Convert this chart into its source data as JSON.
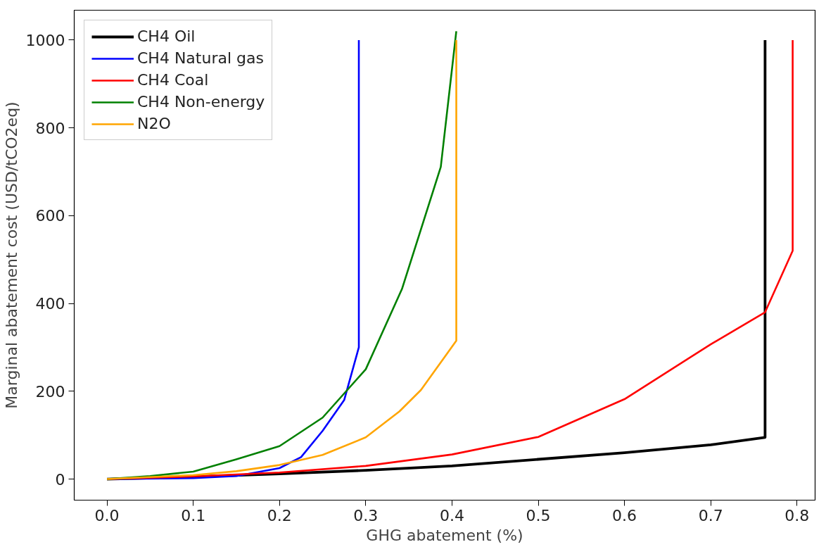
{
  "chart_data": {
    "type": "line",
    "xlabel": "GHG abatement (%)",
    "ylabel": "Marginal abatement cost (USD/tCO2eq)",
    "xlim": [
      -0.038,
      0.821
    ],
    "ylim": [
      -48,
      1068
    ],
    "xticks": [
      {
        "value": 0,
        "label": "0.0"
      },
      0.1,
      0.2,
      0.3,
      0.4,
      0.5,
      0.6,
      0.7,
      0.8
    ],
    "yticks": [
      0,
      200,
      400,
      600,
      800,
      1000
    ],
    "grid": false,
    "legend": "top left",
    "marker": "none",
    "line_style": "solid",
    "series": [
      {
        "name": "CH4 Oil",
        "color": "#000000",
        "x": [
          0,
          0.1,
          0.2,
          0.3,
          0.4,
          0.5,
          0.6,
          0.7,
          0.763,
          0.763
        ],
        "values": [
          0,
          5,
          12,
          20,
          30,
          45,
          60,
          78,
          95,
          1000
        ]
      },
      {
        "name": "CH4 Natural gas",
        "color": "#0000ff",
        "x": [
          0,
          0.1,
          0.15,
          0.2,
          0.225,
          0.25,
          0.275,
          0.292,
          0.292
        ],
        "values": [
          0,
          2,
          7,
          25,
          50,
          110,
          180,
          300,
          1000
        ]
      },
      {
        "name": "CH4 Coal",
        "color": "#ff0000",
        "x": [
          0,
          0.1,
          0.2,
          0.3,
          0.4,
          0.5,
          0.6,
          0.7,
          0.763,
          0.795,
          0.795
        ],
        "values": [
          0,
          6,
          15,
          30,
          56,
          96,
          182,
          307,
          380,
          520,
          1000
        ]
      },
      {
        "name": "CH4 Non-energy",
        "color": "#008000",
        "x": [
          0,
          0.05,
          0.1,
          0.15,
          0.2,
          0.25,
          0.3,
          0.342,
          0.387,
          0.405
        ],
        "values": [
          0,
          7,
          17,
          45,
          75,
          140,
          250,
          433,
          711,
          1020
        ]
      },
      {
        "name": "N2O",
        "color": "#ffa500",
        "x": [
          0,
          0.1,
          0.15,
          0.2,
          0.25,
          0.3,
          0.339,
          0.364,
          0.405,
          0.405
        ],
        "values": [
          0,
          9,
          18,
          32,
          55,
          95,
          154,
          203,
          315,
          1000
        ]
      }
    ]
  }
}
